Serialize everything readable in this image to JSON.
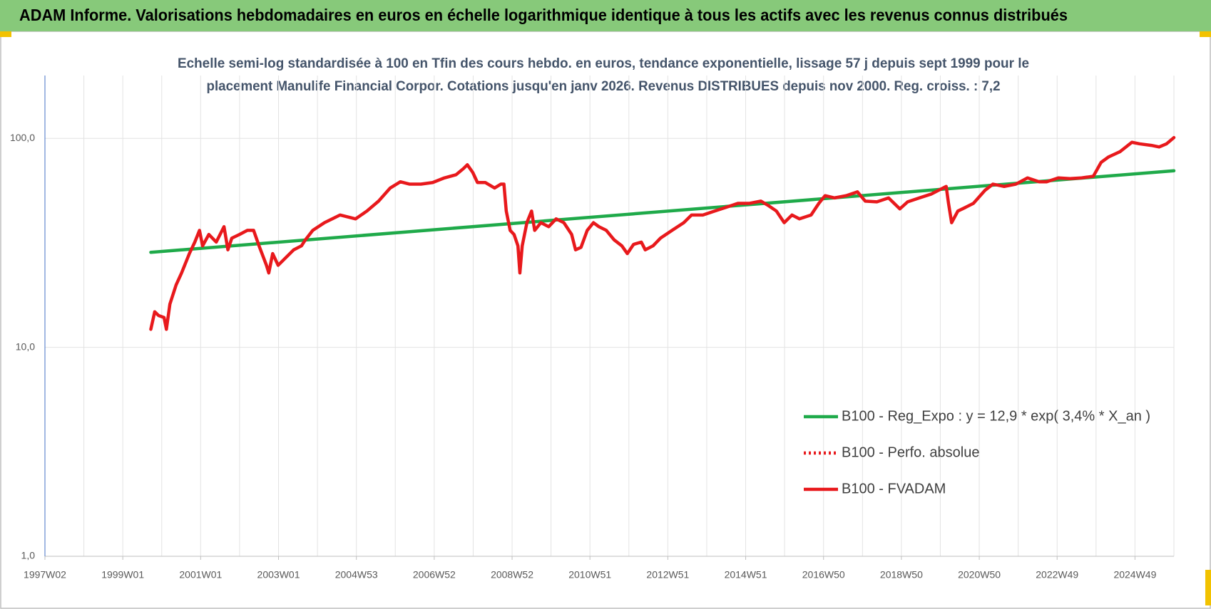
{
  "chart_data": {
    "type": "line",
    "title": "ADAM Informe. Valorisations hebdomadaires en euros en échelle logarithmique identique à tous les actifs avec les revenus connus distribués",
    "subtitle": [
      "Echelle semi-log standardisée à 100 en Tfin des cours hebdo. en euros, tendance exponentielle, lissage 57 j depuis sept 1999 pour le",
      "placement Manulife Financial Corpor. Cotations jusqu'en janv 2026. Revenus DISTRIBUES depuis nov 2000.  Reg. croiss. : 7,2"
    ],
    "log_y": true,
    "grid": true,
    "legend": "right",
    "xlim": [
      1997,
      2026
    ],
    "xticks": [
      {
        "value": 1997,
        "label": "1997W02"
      },
      {
        "value": 1999,
        "label": "1999W01"
      },
      {
        "value": 2001,
        "label": "2001W01"
      },
      {
        "value": 2003,
        "label": "2003W01"
      },
      {
        "value": 2005,
        "label": "2004W53"
      },
      {
        "value": 2007,
        "label": "2006W52"
      },
      {
        "value": 2009,
        "label": "2008W52"
      },
      {
        "value": 2011,
        "label": "2010W51"
      },
      {
        "value": 2013,
        "label": "2012W51"
      },
      {
        "value": 2015,
        "label": "2014W51"
      },
      {
        "value": 2017,
        "label": "2016W50"
      },
      {
        "value": 2019,
        "label": "2018W50"
      },
      {
        "value": 2021,
        "label": "2020W50"
      },
      {
        "value": 2023,
        "label": "2022W49"
      },
      {
        "value": 2025,
        "label": "2024W49"
      }
    ],
    "x_minor_ticks": [
      1998,
      2000,
      2002,
      2004,
      2006,
      2008,
      2010,
      2012,
      2014,
      2016,
      2018,
      2020,
      2022,
      2024,
      2026
    ],
    "ylim": [
      1,
      200
    ],
    "yticks": [
      {
        "value": 1,
        "label": "1,0"
      },
      {
        "value": 10,
        "label": "10,0"
      },
      {
        "value": 100,
        "label": "100,0"
      }
    ],
    "series": [
      {
        "name": "B100 - Reg_Expo : y = 12,9 * exp( 3,4% *  X_an )",
        "color": "#1faa4a",
        "style": "solid",
        "x": [
          1999.72,
          2026.0
        ],
        "values": [
          28.5,
          70.0
        ]
      },
      {
        "name": "B100 - Perfo. absolue",
        "color": "#e8191c",
        "style": "dotted"
      },
      {
        "name": "B100 - FVADAM",
        "color": "#e8191c",
        "style": "solid",
        "x": [
          1999.72,
          1999.82,
          1999.92,
          2000.06,
          2000.12,
          2000.21,
          2000.37,
          2000.51,
          2000.71,
          2000.85,
          2000.97,
          2001.05,
          2001.21,
          2001.4,
          2001.6,
          2001.7,
          2001.8,
          2002.0,
          2002.2,
          2002.36,
          2002.5,
          2002.69,
          2002.75,
          2002.85,
          2002.99,
          2003.19,
          2003.39,
          2003.59,
          2003.69,
          2003.88,
          2004.18,
          2004.58,
          2004.98,
          2005.27,
          2005.57,
          2005.87,
          2006.13,
          2006.37,
          2006.66,
          2006.96,
          2007.26,
          2007.56,
          2007.75,
          2007.85,
          2007.99,
          2008.11,
          2008.31,
          2008.55,
          2008.71,
          2008.79,
          2008.85,
          2008.95,
          2009.05,
          2009.15,
          2009.2,
          2009.26,
          2009.38,
          2009.5,
          2009.58,
          2009.74,
          2009.94,
          2010.13,
          2010.33,
          2010.53,
          2010.63,
          2010.77,
          2010.93,
          2011.09,
          2011.23,
          2011.42,
          2011.62,
          2011.82,
          2011.96,
          2012.12,
          2012.32,
          2012.42,
          2012.62,
          2012.81,
          2013.11,
          2013.41,
          2013.61,
          2013.9,
          2014.2,
          2014.5,
          2014.8,
          2015.1,
          2015.39,
          2015.59,
          2015.79,
          2015.99,
          2016.19,
          2016.38,
          2016.68,
          2016.88,
          2017.04,
          2017.28,
          2017.58,
          2017.87,
          2018.07,
          2018.37,
          2018.67,
          2018.96,
          2019.16,
          2019.46,
          2019.76,
          2019.96,
          2020.15,
          2020.21,
          2020.29,
          2020.45,
          2020.65,
          2020.85,
          2021.15,
          2021.35,
          2021.64,
          2021.94,
          2022.24,
          2022.54,
          2022.73,
          2023.03,
          2023.33,
          2023.63,
          2023.93,
          2024.13,
          2024.32,
          2024.62,
          2024.92,
          2025.12,
          2025.42,
          2025.62,
          2025.81,
          2026.0
        ],
        "values": [
          12.2,
          14.8,
          14.2,
          13.9,
          12.2,
          16.1,
          19.9,
          22.7,
          28.1,
          31.9,
          36.3,
          30.6,
          34.7,
          31.9,
          37.8,
          29.3,
          33.3,
          34.7,
          36.3,
          36.3,
          30.6,
          24.7,
          22.7,
          28.1,
          24.7,
          26.9,
          29.3,
          30.6,
          32.7,
          36.3,
          39.5,
          43.0,
          41.2,
          44.9,
          50.1,
          57.9,
          62.0,
          60.4,
          60.4,
          61.5,
          64.7,
          67.0,
          71.7,
          74.8,
          68.7,
          61.5,
          61.5,
          57.9,
          60.4,
          60.4,
          44.9,
          36.3,
          34.7,
          30.6,
          22.7,
          30.6,
          39.5,
          44.9,
          36.3,
          39.5,
          37.8,
          41.2,
          39.5,
          34.7,
          29.3,
          30.1,
          36.3,
          39.5,
          37.8,
          36.3,
          32.7,
          30.6,
          28.1,
          31.1,
          31.9,
          29.3,
          30.6,
          33.3,
          36.3,
          39.5,
          43.0,
          43.0,
          44.9,
          46.8,
          48.9,
          48.9,
          50.1,
          47.6,
          44.9,
          39.5,
          43.0,
          41.2,
          43.0,
          48.9,
          53.2,
          51.9,
          53.2,
          55.5,
          50.1,
          49.7,
          51.9,
          46.0,
          49.7,
          51.9,
          54.1,
          56.5,
          58.9,
          48.9,
          39.5,
          44.9,
          46.8,
          48.9,
          56.5,
          60.4,
          58.9,
          60.4,
          64.7,
          62.0,
          62.0,
          64.7,
          64.2,
          64.7,
          65.9,
          76.8,
          81.5,
          86.5,
          95.8,
          94.2,
          92.6,
          91.0,
          94.2,
          100.9
        ]
      }
    ]
  }
}
